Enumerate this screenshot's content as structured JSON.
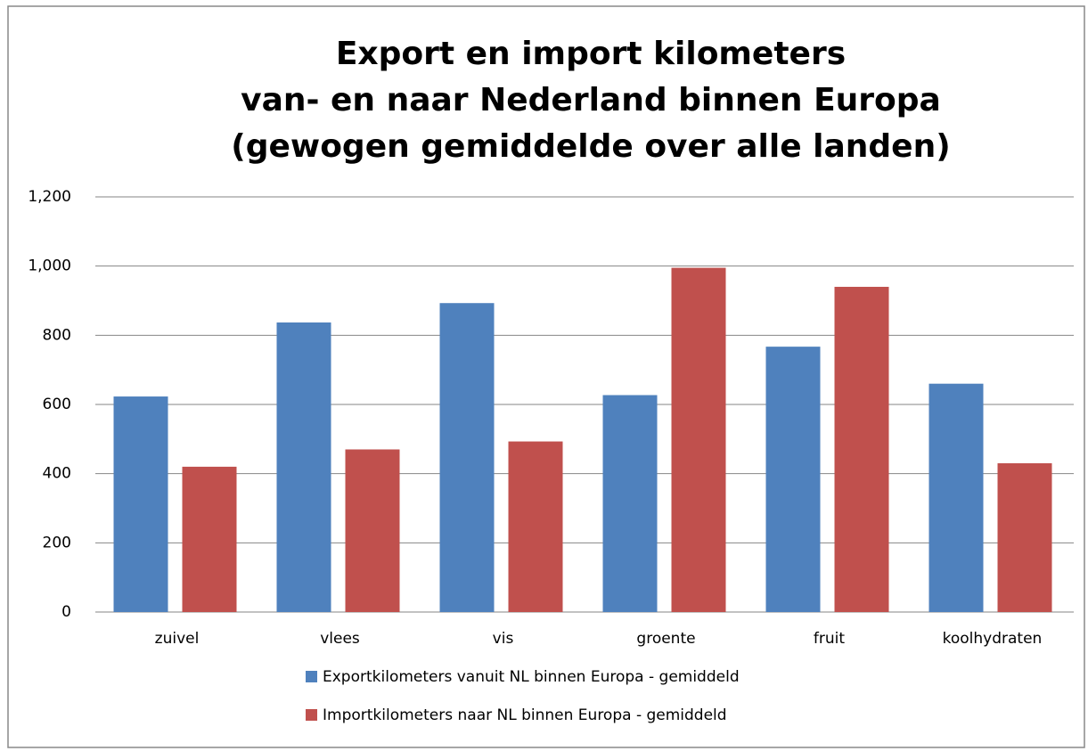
{
  "chart_data": {
    "type": "bar",
    "title": [
      "Export en import kilometers",
      "van- en naar Nederland binnen Europa",
      "(gewogen gemiddelde over alle landen)"
    ],
    "categories": [
      "zuivel",
      "vlees",
      "vis",
      "groente",
      "fruit",
      "koolhydraten"
    ],
    "series": [
      {
        "name": "Exportkilometers vanuit NL binnen Europa - gemiddeld",
        "color": "#4f81bd",
        "values": [
          623,
          837,
          893,
          627,
          767,
          660
        ]
      },
      {
        "name": "Importkilometers naar NL binnen Europa - gemiddeld",
        "color": "#c0504d",
        "values": [
          420,
          470,
          493,
          995,
          940,
          430
        ]
      }
    ],
    "ylim": [
      0,
      1200
    ],
    "yticks": [
      0,
      200,
      400,
      600,
      800,
      {
        "value": 1000,
        "label": "1,000"
      },
      {
        "value": 1200,
        "label": "1,200"
      }
    ],
    "grid": true,
    "legend": "bottom"
  }
}
